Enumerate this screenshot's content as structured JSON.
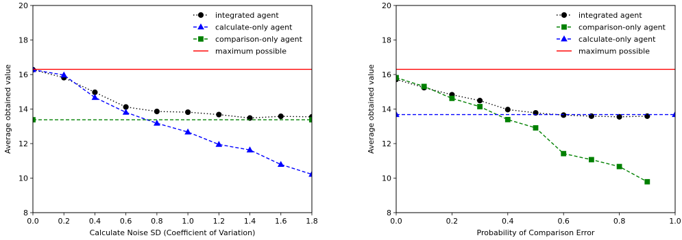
{
  "chart_data": [
    {
      "type": "line",
      "title": "",
      "xlabel": "Calculate Noise SD (Coefficient of Variation)",
      "ylabel": "Average obtained value",
      "xlim": [
        0.0,
        1.8
      ],
      "ylim": [
        8,
        20
      ],
      "xticks": [
        "0.0",
        "0.2",
        "0.4",
        "0.6",
        "0.8",
        "1.0",
        "1.2",
        "1.4",
        "1.6",
        "1.8"
      ],
      "xtick_values": [
        0.0,
        0.2,
        0.4,
        0.6,
        0.8,
        1.0,
        1.2,
        1.4,
        1.6,
        1.8
      ],
      "yticks": [
        "8",
        "10",
        "12",
        "14",
        "16",
        "18",
        "20"
      ],
      "ytick_values": [
        8,
        10,
        12,
        14,
        16,
        18,
        20
      ],
      "grid": false,
      "legend_position": "top-right",
      "series": [
        {
          "name": "integrated agent",
          "color": "#000000",
          "dash": "dotted",
          "marker": "circle",
          "x": [
            0.0,
            0.2,
            0.4,
            0.6,
            0.8,
            1.0,
            1.2,
            1.4,
            1.6,
            1.8
          ],
          "y": [
            16.28,
            15.82,
            14.97,
            14.12,
            13.86,
            13.82,
            13.68,
            13.48,
            13.58,
            13.55
          ]
        },
        {
          "name": "calculate-only agent",
          "color": "#0000ff",
          "dash": "dashed",
          "marker": "triangle",
          "x": [
            0.0,
            0.2,
            0.4,
            0.6,
            0.8,
            1.0,
            1.2,
            1.4,
            1.6,
            1.8
          ],
          "y": [
            16.28,
            15.97,
            14.67,
            13.81,
            13.18,
            12.67,
            11.95,
            11.63,
            10.79,
            10.22
          ]
        },
        {
          "name": "comparison-only agent",
          "color": "#008000",
          "dash": "dashed",
          "marker": "square",
          "x": [
            0.0,
            1.8
          ],
          "y": [
            13.38,
            13.38
          ]
        },
        {
          "name": "maximum possible",
          "color": "#ff0000",
          "dash": "solid",
          "marker": "none",
          "x": [
            0.0,
            1.8
          ],
          "y": [
            16.3,
            16.3
          ]
        }
      ]
    },
    {
      "type": "line",
      "title": "",
      "xlabel": "Probability of Comparison Error",
      "ylabel": "Average obtained value",
      "xlim": [
        0.0,
        1.0
      ],
      "ylim": [
        8,
        20
      ],
      "xticks": [
        "0.0",
        "0.2",
        "0.4",
        "0.6",
        "0.8",
        "1.0"
      ],
      "xtick_values": [
        0.0,
        0.2,
        0.4,
        0.6,
        0.8,
        1.0
      ],
      "yticks": [
        "8",
        "10",
        "12",
        "14",
        "16",
        "18",
        "20"
      ],
      "ytick_values": [
        8,
        10,
        12,
        14,
        16,
        18,
        20
      ],
      "grid": false,
      "legend_position": "top-right",
      "series": [
        {
          "name": "integrated agent",
          "color": "#000000",
          "dash": "dotted",
          "marker": "circle",
          "x": [
            0.0,
            0.1,
            0.2,
            0.3,
            0.4,
            0.5,
            0.6,
            0.7,
            0.8,
            0.9
          ],
          "y": [
            15.72,
            15.24,
            14.83,
            14.49,
            13.97,
            13.78,
            13.65,
            13.59,
            13.55,
            13.59
          ]
        },
        {
          "name": "comparison-only agent",
          "color": "#008000",
          "dash": "dashed",
          "marker": "square",
          "x": [
            0.0,
            0.1,
            0.2,
            0.3,
            0.4,
            0.5,
            0.6,
            0.7,
            0.8,
            0.9
          ],
          "y": [
            15.82,
            15.31,
            14.62,
            14.14,
            13.39,
            12.91,
            11.42,
            11.07,
            10.67,
            9.79
          ]
        },
        {
          "name": "calculate-only agent",
          "color": "#0000ff",
          "dash": "dashed",
          "marker": "triangle",
          "x": [
            0.0,
            1.0
          ],
          "y": [
            13.68,
            13.68
          ]
        },
        {
          "name": "maximum possible",
          "color": "#ff0000",
          "dash": "solid",
          "marker": "none",
          "x": [
            0.0,
            1.0
          ],
          "y": [
            16.3,
            16.3
          ]
        }
      ]
    }
  ]
}
